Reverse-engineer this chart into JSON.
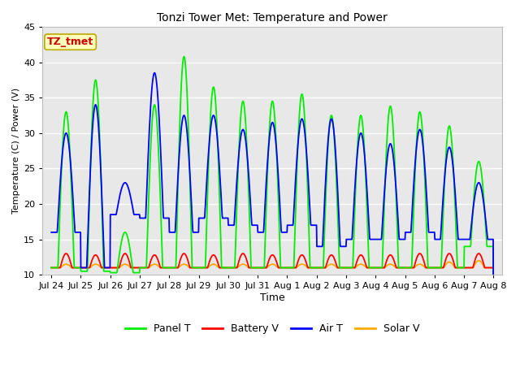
{
  "title": "Tonzi Tower Met: Temperature and Power",
  "xlabel": "Time",
  "ylabel": "Temperature (C) / Power (V)",
  "ylim": [
    10,
    45
  ],
  "fig_bg": "#ffffff",
  "plot_bg_upper": "#e8e8e8",
  "plot_bg_lower": "#ffffff",
  "grid_color": "#ffffff",
  "tick_labels": [
    "Jul 24",
    "Jul 25",
    "Jul 26",
    "Jul 27",
    "Jul 28",
    "Jul 29",
    "Jul 30",
    "Jul 31",
    "Aug 1",
    "Aug 2",
    "Aug 3",
    "Aug 4",
    "Aug 5",
    "Aug 6",
    "Aug 7",
    "Aug 8"
  ],
  "tick_positions": [
    0,
    1,
    2,
    3,
    4,
    5,
    6,
    7,
    8,
    9,
    10,
    11,
    12,
    13,
    14,
    15
  ],
  "panel_color": "#00ee00",
  "battery_color": "#ff0000",
  "air_color": "#0000ff",
  "solar_color": "#ffaa00",
  "annotation_text": "TZ_tmet",
  "annotation_bg": "#ffffbb",
  "annotation_border": "#bbaa00",
  "annotation_text_color": "#cc0000",
  "n_days": 15,
  "samples_per_day": 96,
  "panel_peaks": [
    33,
    37.5,
    16,
    34,
    40.8,
    36.5,
    34.5,
    34.5,
    35.5,
    32.5,
    32.5,
    33.8,
    33,
    31,
    26,
    14
  ],
  "panel_troughs": [
    11,
    10.5,
    10.3,
    11,
    11,
    11,
    11,
    11,
    11,
    11,
    11,
    11,
    11,
    11,
    14,
    14
  ],
  "air_peaks": [
    30,
    34,
    23,
    38.5,
    32.5,
    32.5,
    30.5,
    31.5,
    32,
    32,
    30,
    28.5,
    30.5,
    28,
    23,
    14
  ],
  "air_troughs": [
    16,
    11,
    18.5,
    18,
    16,
    18,
    17,
    16,
    17,
    14,
    15,
    15,
    16,
    15,
    15,
    14
  ],
  "batt_peaks": [
    13,
    12.8,
    13,
    12.8,
    13,
    12.8,
    13,
    12.8,
    12.8,
    12.8,
    12.8,
    12.8,
    13,
    13,
    13,
    12.8
  ],
  "batt_troughs": [
    11,
    11,
    11,
    11,
    11,
    11,
    11,
    11,
    11,
    11,
    11,
    11,
    11,
    11,
    11,
    11
  ],
  "solar_peaks": [
    11.5,
    11.5,
    11.5,
    11.5,
    11.5,
    11.5,
    11.5,
    11.5,
    11.5,
    11.5,
    11.5,
    11.5,
    11.5,
    11.8,
    12,
    11.5
  ],
  "solar_troughs": [
    11,
    11,
    11,
    11,
    11,
    11,
    11,
    11,
    11,
    11,
    11,
    11,
    11,
    11,
    11,
    11
  ]
}
